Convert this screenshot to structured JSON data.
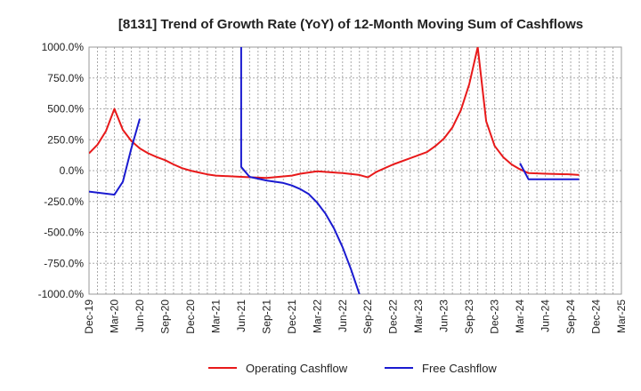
{
  "chart_data": {
    "type": "line",
    "title": "[8131]  Trend of Growth Rate (YoY) of 12-Month Moving Sum of Cashflows",
    "xlabel": "",
    "ylabel": "",
    "ylim": [
      -1000,
      1000
    ],
    "y_ticks": [
      1000,
      750,
      500,
      250,
      0,
      -250,
      -500,
      -750,
      -1000
    ],
    "y_tick_labels": [
      "1000.0%",
      "750.0%",
      "500.0%",
      "250.0%",
      "0.0%",
      "-250.0%",
      "-500.0%",
      "-750.0%",
      "-1000.0%"
    ],
    "x_tick_labels": [
      "Dec-19",
      "Mar-20",
      "Jun-20",
      "Sep-20",
      "Dec-20",
      "Mar-21",
      "Jun-21",
      "Sep-21",
      "Dec-21",
      "Mar-22",
      "Jun-22",
      "Sep-22",
      "Dec-22",
      "Mar-23",
      "Jun-23",
      "Sep-23",
      "Dec-23",
      "Mar-24",
      "Jun-24",
      "Sep-24",
      "Dec-24",
      "Mar-25"
    ],
    "grid": true,
    "legend_position": "bottom",
    "series": [
      {
        "name": "Operating Cashflow",
        "color": "#e8191a",
        "points": [
          [
            "2019-12",
            140
          ],
          [
            "2020-01",
            210
          ],
          [
            "2020-02",
            320
          ],
          [
            "2020-03",
            500
          ],
          [
            "2020-04",
            330
          ],
          [
            "2020-05",
            240
          ],
          [
            "2020-06",
            180
          ],
          [
            "2020-07",
            140
          ],
          [
            "2020-08",
            110
          ],
          [
            "2020-09",
            85
          ],
          [
            "2020-10",
            50
          ],
          [
            "2020-11",
            20
          ],
          [
            "2020-12",
            0
          ],
          [
            "2021-01",
            -15
          ],
          [
            "2021-02",
            -30
          ],
          [
            "2021-03",
            -40
          ],
          [
            "2021-06",
            -50
          ],
          [
            "2021-09",
            -60
          ],
          [
            "2021-12",
            -40
          ],
          [
            "2022-01",
            -25
          ],
          [
            "2022-03",
            -5
          ],
          [
            "2022-06",
            -20
          ],
          [
            "2022-08",
            -35
          ],
          [
            "2022-09",
            -55
          ],
          [
            "2022-10",
            -10
          ],
          [
            "2022-12",
            50
          ],
          [
            "2023-02",
            100
          ],
          [
            "2023-04",
            150
          ],
          [
            "2023-05",
            200
          ],
          [
            "2023-06",
            260
          ],
          [
            "2023-07",
            350
          ],
          [
            "2023-08",
            490
          ],
          [
            "2023-09",
            700
          ],
          [
            "2023-10",
            1000
          ],
          [
            "2023-11",
            400
          ],
          [
            "2023-12",
            200
          ],
          [
            "2024-01",
            110
          ],
          [
            "2024-02",
            50
          ],
          [
            "2024-03",
            10
          ],
          [
            "2024-04",
            -20
          ],
          [
            "2024-06",
            -25
          ],
          [
            "2024-09",
            -30
          ],
          [
            "2024-10",
            -35
          ]
        ]
      },
      {
        "name": "Free Cashflow",
        "color": "#1a1ad0",
        "segments": [
          [
            [
              "2019-12",
              -170
            ],
            [
              "2020-03",
              -195
            ],
            [
              "2020-04",
              -90
            ],
            [
              "2020-05",
              180
            ],
            [
              "2020-06",
              420
            ]
          ],
          [
            [
              "2021-06",
              1000
            ],
            [
              "2021-06",
              30
            ],
            [
              "2021-07",
              -50
            ],
            [
              "2021-09",
              -80
            ],
            [
              "2021-11",
              -100
            ],
            [
              "2021-12",
              -120
            ],
            [
              "2022-01",
              -150
            ],
            [
              "2022-02",
              -190
            ],
            [
              "2022-03",
              -260
            ],
            [
              "2022-04",
              -350
            ],
            [
              "2022-05",
              -470
            ],
            [
              "2022-06",
              -620
            ],
            [
              "2022-07",
              -800
            ],
            [
              "2022-08",
              -1000
            ]
          ],
          [
            [
              "2024-03",
              60
            ],
            [
              "2024-04",
              -70
            ],
            [
              "2024-07",
              -70
            ],
            [
              "2024-10",
              -70
            ]
          ]
        ]
      }
    ]
  }
}
